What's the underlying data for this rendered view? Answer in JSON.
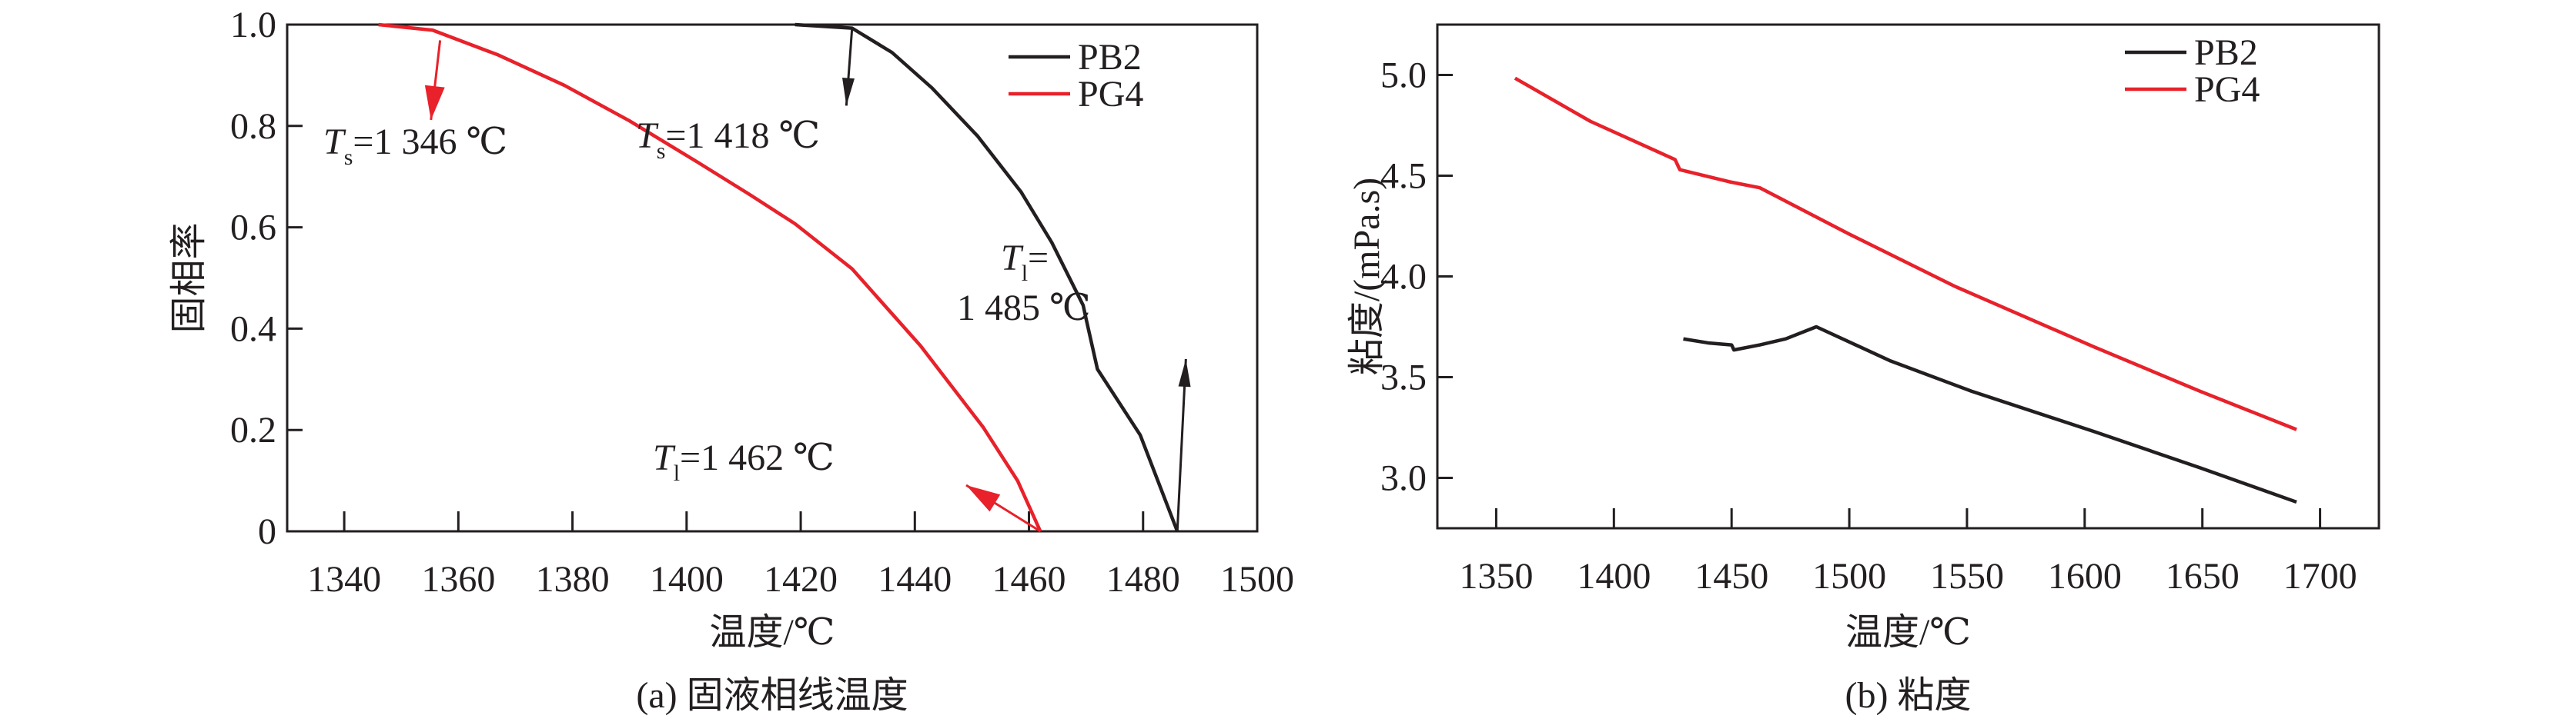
{
  "colors": {
    "PB2": "#231f20",
    "PG4": "#e8212a",
    "axis": "#231f20"
  },
  "chart_data": [
    {
      "type": "line",
      "caption": "(a) 固液相线温度",
      "xlabel": "温度/℃",
      "ylabel": "固相率",
      "xlim": [
        1330,
        1500
      ],
      "ylim": [
        0,
        1
      ],
      "xticks": [
        "1340",
        "1360",
        "1380",
        "1400",
        "1420",
        "1440",
        "1460",
        "1480",
        "1500"
      ],
      "yticks": [
        "0",
        "0.2",
        "0.4",
        "0.6",
        "0.8",
        "1.0"
      ],
      "grid": false,
      "legend": "top-right",
      "series": [
        {
          "name": "PB2",
          "color": "#231f20",
          "x": [
            1419,
            1429,
            1436,
            1443,
            1451,
            1458.6,
            1464,
            1469.5,
            1470,
            1472,
            1479.5,
            1486
          ],
          "y": [
            1.0,
            0.993,
            0.945,
            0.875,
            0.78,
            0.67,
            0.57,
            0.446,
            0.42,
            0.32,
            0.19,
            0.0
          ]
        },
        {
          "name": "PG4",
          "color": "#e8212a",
          "x": [
            1346,
            1355.5,
            1367,
            1378.6,
            1390,
            1402,
            1411,
            1419,
            1429,
            1441,
            1452,
            1458,
            1462
          ],
          "y": [
            1.0,
            0.989,
            0.94,
            0.88,
            0.81,
            0.728,
            0.665,
            0.607,
            0.518,
            0.366,
            0.205,
            0.1,
            0.0
          ]
        }
      ],
      "annotations": [
        {
          "sym": "T",
          "sub": "s",
          "text": "=1 346 ℃",
          "color": "#e8212a",
          "arrow_from": [
            1356.8,
            0.969
          ],
          "arrow_to": [
            1355.2,
            0.812
          ]
        },
        {
          "sym": "T",
          "sub": "s",
          "text": "=1 418 ℃",
          "color": "#231f20",
          "arrow_from": [
            1429,
            0.993
          ],
          "arrow_to": [
            1428,
            0.84
          ]
        },
        {
          "sym": "T",
          "sub": "l",
          "text": "=",
          "text2": "1 485 ℃",
          "color": "#231f20",
          "arrow_from": [
            1486,
            0.0
          ],
          "arrow_to": [
            1487.5,
            0.34
          ]
        },
        {
          "sym": "T",
          "sub": "l",
          "text": "=1 462 ℃",
          "color": "#e8212a",
          "arrow_from": [
            1462,
            0.0
          ],
          "arrow_to": [
            1449,
            0.091
          ]
        }
      ]
    },
    {
      "type": "line",
      "caption": "(b) 粘度",
      "xlabel": "温度/℃",
      "ylabel": "粘度/(mPa.s)",
      "xlim": [
        1325,
        1725
      ],
      "ylim": [
        2.75,
        5.25
      ],
      "xticks": [
        "1350",
        "1400",
        "1450",
        "1500",
        "1550",
        "1600",
        "1650",
        "1700"
      ],
      "yticks": [
        "3.0",
        "3.5",
        "4.0",
        "4.5",
        "5.0"
      ],
      "grid": false,
      "legend": "top-right",
      "series": [
        {
          "name": "PB2",
          "color": "#231f20",
          "x": [
            1429.5,
            1440,
            1450,
            1451,
            1462,
            1473,
            1486,
            1517.6,
            1552,
            1604,
            1649,
            1690
          ],
          "y": [
            3.69,
            3.67,
            3.66,
            3.635,
            3.66,
            3.69,
            3.75,
            3.58,
            3.43,
            3.23,
            3.05,
            2.88
          ]
        },
        {
          "name": "PG4",
          "color": "#e8212a",
          "x": [
            1358,
            1390,
            1426,
            1428,
            1449,
            1462,
            1500,
            1545,
            1604,
            1649,
            1690
          ],
          "y": [
            4.984,
            4.77,
            4.58,
            4.53,
            4.47,
            4.44,
            4.21,
            3.95,
            3.65,
            3.43,
            3.24
          ]
        }
      ]
    }
  ]
}
